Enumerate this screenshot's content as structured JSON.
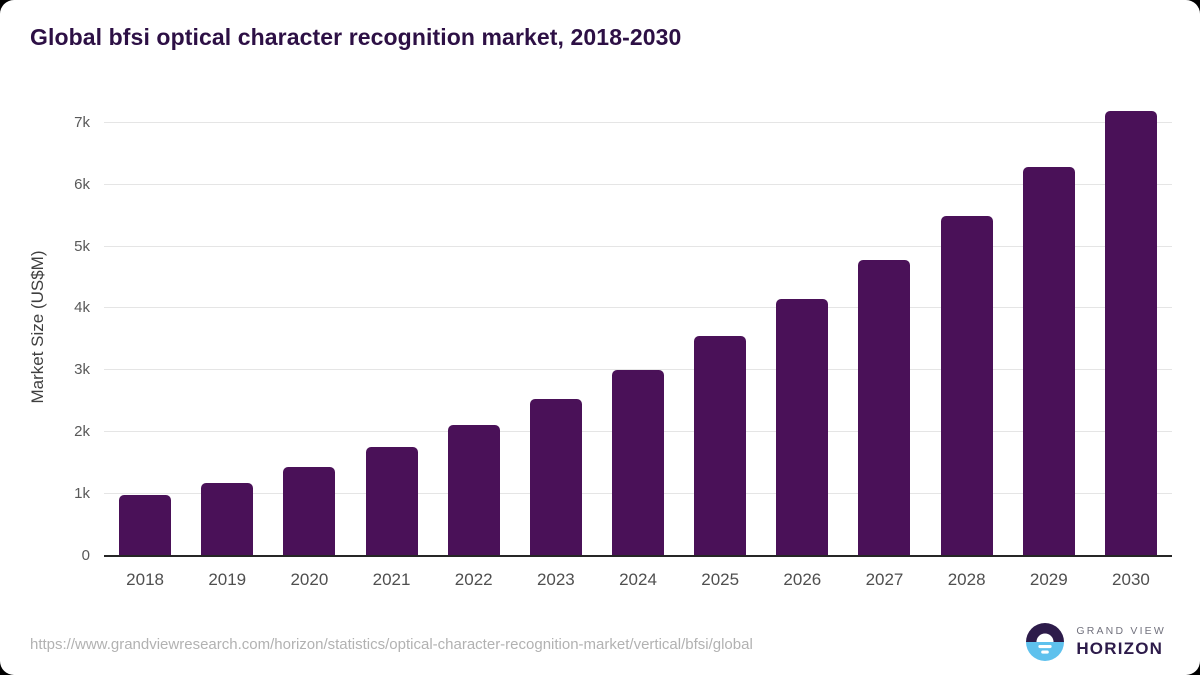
{
  "title": "Global bfsi optical character recognition market, 2018-2030",
  "source_url": "https://www.grandviewresearch.com/horizon/statistics/optical-character-recognition-market/vertical/bfsi/global",
  "logo": {
    "line1": "GRAND VIEW",
    "line2": "HORIZON",
    "icon": "horizon-sun-over-water-icon"
  },
  "colors": {
    "bar": "#4a1158",
    "title": "#2d1045",
    "axis_line": "#262626",
    "gridline": "#e5e5e5",
    "tick": "#595959",
    "url": "#b2b2b2",
    "logo_purple": "#2d1b4a",
    "logo_blue": "#5ec1ed"
  },
  "chart_data": {
    "type": "bar",
    "title": "Global bfsi optical character recognition market, 2018-2030",
    "xlabel": "",
    "ylabel": "Market Size (US$M)",
    "categories": [
      "2018",
      "2019",
      "2020",
      "2021",
      "2022",
      "2023",
      "2024",
      "2025",
      "2026",
      "2027",
      "2028",
      "2029",
      "2030"
    ],
    "values": [
      980,
      1175,
      1440,
      1755,
      2115,
      2530,
      3005,
      3555,
      4150,
      4775,
      5495,
      6285,
      7185
    ],
    "ylim": [
      0,
      7400
    ],
    "yticks": [
      {
        "value": 0,
        "label": "0"
      },
      {
        "value": 1000,
        "label": "1k"
      },
      {
        "value": 2000,
        "label": "2k"
      },
      {
        "value": 3000,
        "label": "3k"
      },
      {
        "value": 4000,
        "label": "4k"
      },
      {
        "value": 5000,
        "label": "5k"
      },
      {
        "value": 6000,
        "label": "6k"
      },
      {
        "value": 7000,
        "label": "7k"
      }
    ],
    "grid": true,
    "legend": false,
    "bar_color": "#4a1158"
  }
}
